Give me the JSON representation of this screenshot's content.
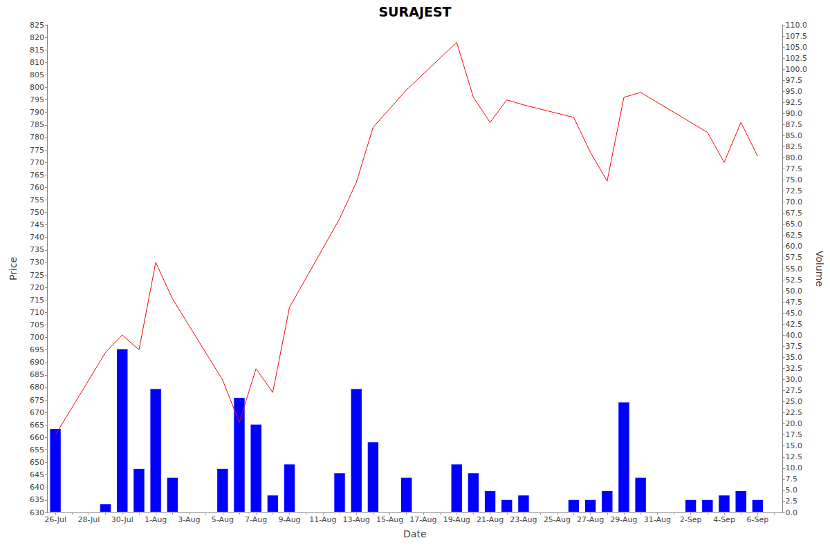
{
  "chart_data": {
    "type": "line",
    "title": "SURAJEST",
    "x_label": "Date",
    "y_label": "Price",
    "y2_label": "Volume",
    "categories": [
      "26-Jul",
      null,
      "28-Jul",
      null,
      "30-Jul",
      null,
      "1-Aug",
      null,
      "3-Aug",
      null,
      "5-Aug",
      null,
      "7-Aug",
      null,
      "9-Aug",
      null,
      "11-Aug",
      null,
      "13-Aug",
      null,
      "15-Aug",
      null,
      "17-Aug",
      null,
      "19-Aug",
      null,
      "21-Aug",
      null,
      "23-Aug",
      null,
      "25-Aug",
      null,
      "27-Aug",
      null,
      "29-Aug",
      null,
      "31-Aug",
      null,
      "2-Sep",
      null,
      "4-Sep",
      null,
      "6-Sep",
      null
    ],
    "series": [
      {
        "type": "line",
        "color": "#ff0000",
        "values": [
          661,
          null,
          null,
          694,
          701,
          695,
          730,
          715.5,
          null,
          null,
          683,
          666,
          687.5,
          678,
          712,
          null,
          null,
          747.5,
          762,
          784,
          null,
          799,
          null,
          null,
          818,
          796,
          786,
          795,
          793,
          null,
          null,
          788,
          774,
          762.5,
          796,
          798,
          null,
          null,
          null,
          782,
          770,
          786,
          772.5,
          null
        ]
      },
      {
        "type": "bar",
        "color": "#0000ff",
        "axis": "y2",
        "values": [
          19,
          null,
          null,
          2,
          37,
          10,
          28,
          8,
          null,
          null,
          10,
          26,
          20,
          4,
          11,
          null,
          null,
          9,
          28,
          16,
          null,
          8,
          null,
          null,
          11,
          9,
          5,
          3,
          4,
          null,
          null,
          3,
          3,
          5,
          25,
          8,
          null,
          null,
          3,
          3,
          4,
          5,
          3,
          null
        ]
      }
    ],
    "ylim": [
      630,
      825
    ],
    "yticks": [
      630,
      635,
      640,
      645,
      650,
      655,
      660,
      665,
      670,
      675,
      680,
      685,
      690,
      695,
      700,
      705,
      710,
      715,
      720,
      725,
      730,
      735,
      740,
      745,
      750,
      755,
      760,
      765,
      770,
      775,
      780,
      785,
      790,
      795,
      800,
      805,
      810,
      815,
      820,
      825
    ],
    "y2lim": [
      0,
      110
    ],
    "y2ticks": [
      {
        "value": 0,
        "label": "0.0"
      },
      2.5,
      {
        "value": 5,
        "label": "5.0"
      },
      7.5,
      {
        "value": 10,
        "label": "10.0"
      },
      12.5,
      {
        "value": 15,
        "label": "15.0"
      },
      17.5,
      {
        "value": 20,
        "label": "20.0"
      },
      22.5,
      {
        "value": 25,
        "label": "25.0"
      },
      27.5,
      {
        "value": 30,
        "label": "30.0"
      },
      32.5,
      {
        "value": 35,
        "label": "35.0"
      },
      37.5,
      {
        "value": 40,
        "label": "40.0"
      },
      42.5,
      {
        "value": 45,
        "label": "45.0"
      },
      47.5,
      {
        "value": 50,
        "label": "50.0"
      },
      52.5,
      {
        "value": 55,
        "label": "55.0"
      },
      57.5,
      {
        "value": 60,
        "label": "60.0"
      },
      62.5,
      {
        "value": 65,
        "label": "65.0"
      },
      67.5,
      {
        "value": 70,
        "label": "70.0"
      },
      72.5,
      {
        "value": 75,
        "label": "75.0"
      },
      77.5,
      {
        "value": 80,
        "label": "80.0"
      },
      82.5,
      {
        "value": 85,
        "label": "85.0"
      },
      87.5,
      {
        "value": 90,
        "label": "90.0"
      },
      92.5,
      {
        "value": 95,
        "label": "95.0"
      },
      97.5,
      {
        "value": 100,
        "label": "100.0"
      },
      102.5,
      {
        "value": 105,
        "label": "105.0"
      },
      107.5,
      {
        "value": 110,
        "label": "110.0"
      }
    ],
    "grid": false
  }
}
